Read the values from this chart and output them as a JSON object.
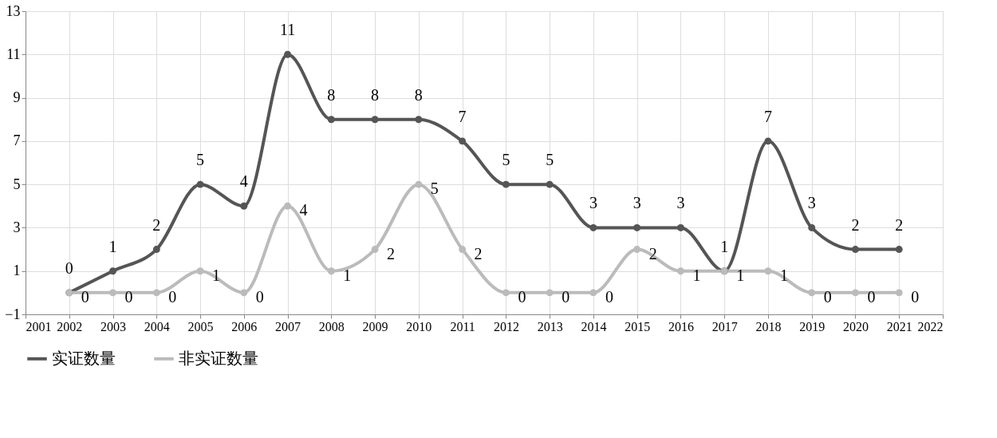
{
  "chart_data": {
    "type": "line",
    "x": [
      2002,
      2003,
      2004,
      2005,
      2006,
      2007,
      2008,
      2009,
      2010,
      2011,
      2012,
      2013,
      2014,
      2015,
      2016,
      2017,
      2018,
      2019,
      2020,
      2021
    ],
    "series": [
      {
        "name": "实证数量",
        "color": "#555555",
        "values": [
          0,
          1,
          2,
          5,
          4,
          11,
          8,
          8,
          8,
          7,
          5,
          5,
          3,
          3,
          3,
          1,
          7,
          3,
          2,
          2
        ]
      },
      {
        "name": "非实证数量",
        "color": "#bbbbbb",
        "values": [
          0,
          0,
          0,
          1,
          0,
          4,
          1,
          2,
          5,
          2,
          0,
          0,
          0,
          2,
          1,
          1,
          1,
          0,
          0,
          0
        ]
      }
    ],
    "xlim": [
      2001,
      2022
    ],
    "xticks": [
      2001,
      2002,
      2003,
      2004,
      2005,
      2006,
      2007,
      2008,
      2009,
      2010,
      2011,
      2012,
      2013,
      2014,
      2015,
      2016,
      2017,
      2018,
      2019,
      2020,
      2021,
      2022
    ],
    "ylim": [
      -1,
      13
    ],
    "yticks": [
      -1,
      1,
      3,
      5,
      7,
      9,
      11,
      13
    ],
    "grid": true,
    "legend": "bottom",
    "marker": "circle",
    "line_style": "solid",
    "data_labels": true
  }
}
